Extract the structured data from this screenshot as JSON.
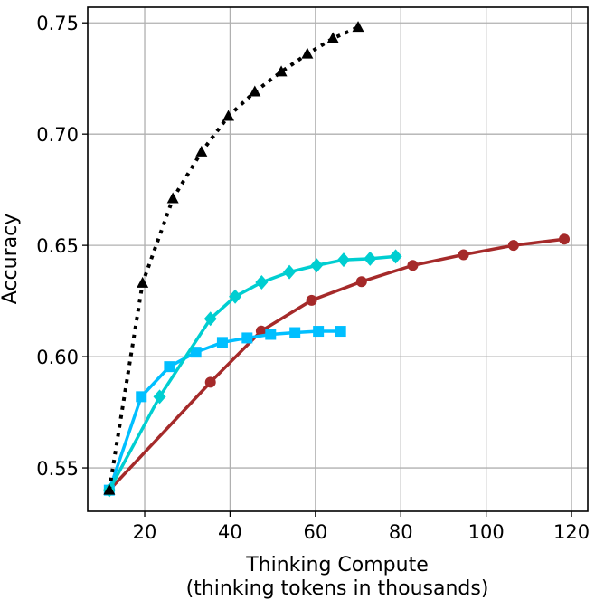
{
  "chart_data": {
    "type": "line",
    "title": "",
    "xlabel": "Thinking Compute",
    "xlabel_line2": "(thinking tokens in thousands)",
    "ylabel": "Accuracy",
    "xlim": [
      6.65,
      123.8
    ],
    "ylim": [
      0.5305,
      0.757
    ],
    "xticks": [
      20,
      40,
      60,
      80,
      100,
      120
    ],
    "xtick_labels": [
      "20",
      "40",
      "60",
      "80",
      "100",
      "120"
    ],
    "yticks": [
      0.55,
      0.6,
      0.65,
      0.7,
      0.75
    ],
    "ytick_labels": [
      "0.55",
      "0.60",
      "0.65",
      "0.70",
      "0.75"
    ],
    "grid": true,
    "series": [
      {
        "name": "brown-circles",
        "color": "#a52a2a",
        "marker": "circle",
        "linestyle": "solid",
        "x": [
          11.7,
          35.4,
          47.3,
          59.1,
          70.8,
          82.8,
          94.7,
          106.4,
          118.3
        ],
        "y": [
          0.54,
          0.5885,
          0.6115,
          0.6253,
          0.6337,
          0.641,
          0.6458,
          0.65,
          0.6528
        ]
      },
      {
        "name": "blue-squares",
        "color": "#00bfff",
        "marker": "square",
        "linestyle": "solid",
        "x": [
          11.7,
          19.2,
          25.8,
          32.0,
          38.2,
          44.0,
          49.5,
          55.2,
          60.7,
          65.9
        ],
        "y": [
          0.54,
          0.582,
          0.5955,
          0.602,
          0.6064,
          0.6084,
          0.61,
          0.6108,
          0.6114,
          0.6114
        ]
      },
      {
        "name": "cyan-diamonds",
        "color": "#00ced1",
        "marker": "diamond",
        "linestyle": "solid",
        "x": [
          11.7,
          23.5,
          35.4,
          41.2,
          47.4,
          53.9,
          60.3,
          66.6,
          72.8,
          78.8
        ],
        "y": [
          0.54,
          0.582,
          0.617,
          0.627,
          0.6334,
          0.638,
          0.641,
          0.6435,
          0.644,
          0.645
        ]
      },
      {
        "name": "black-triangles",
        "color": "#000000",
        "marker": "triangle",
        "linestyle": "dotted",
        "x": [
          11.7,
          19.5,
          26.6,
          33.3,
          39.6,
          45.8,
          52.0,
          58.1,
          64.1,
          70.0
        ],
        "y": [
          0.54,
          0.633,
          0.671,
          0.692,
          0.708,
          0.719,
          0.728,
          0.736,
          0.743,
          0.748
        ]
      }
    ]
  }
}
